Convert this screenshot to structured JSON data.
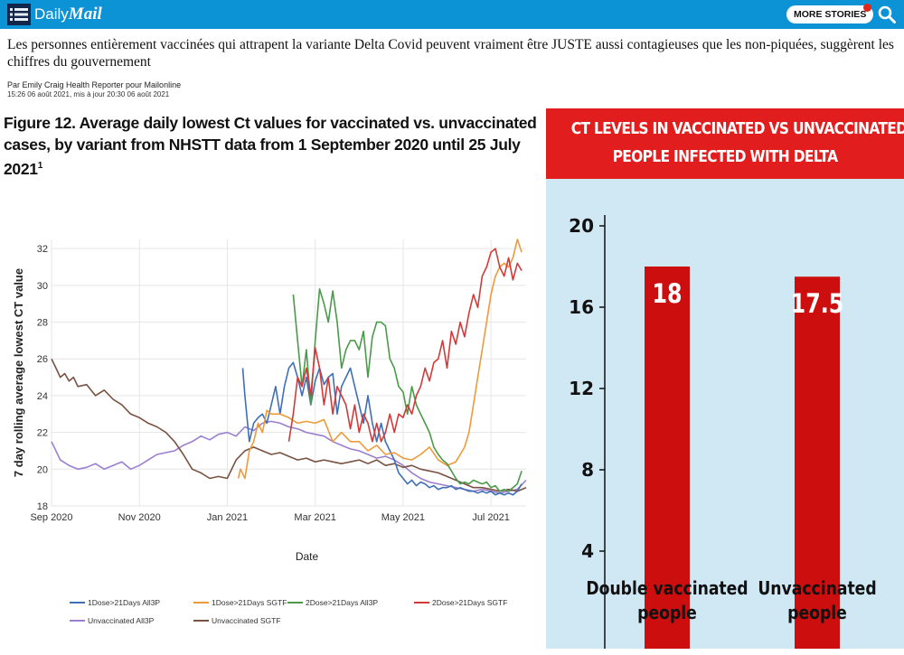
{
  "header": {
    "logo_part1": "Daily",
    "logo_part2": "Mail",
    "more_stories_label": "MORE STORIES",
    "menu_icon": "hamburger-menu-icon",
    "search_icon": "search-icon",
    "brand_color": "#0b93d6"
  },
  "article": {
    "headline": "Les personnes entièrement vaccinées qui attrapent la variante Delta Covid peuvent vraiment être JUSTE aussi contagieuses que les non-piquées, suggèrent les chiffres du gouvernement",
    "byline": "Par Emily Craig Health Reporter pour Mailonline",
    "dateline": "15:26 06 août 2021, mis à jour 20:30 06 août 2021"
  },
  "figure_left": {
    "title": "Figure 12. Average daily lowest Ct values for vaccinated vs. unvaccinated cases, by variant from NHSTT data from 1 September 2020 until 25 July 2021",
    "footnote_mark": "1"
  },
  "figure_right": {
    "banner_line1": "CT LEVELS IN VACCINATED VS UNVACCINATED",
    "banner_line2": "PEOPLE INFECTED WITH DELTA"
  },
  "chart_data": [
    {
      "type": "line",
      "title": "Figure 12. Average daily lowest Ct values for vaccinated vs. unvaccinated cases, by variant from NHSTT data from 1 September 2020 until 25 July 2021",
      "xlabel": "Date",
      "ylabel": "7 day rolling average lowest CT value",
      "x_ticks": [
        "Sep 2020",
        "Nov 2020",
        "Jan 2021",
        "Mar 2021",
        "May 2021",
        "Jul 2021"
      ],
      "y_ticks": [
        18,
        20,
        22,
        24,
        26,
        28,
        30,
        32
      ],
      "ylim": [
        18,
        32.5
      ],
      "x_range_months": [
        0,
        10.8
      ],
      "grid": true,
      "legend_position": "bottom",
      "series": [
        {
          "name": "1Dose>21Days All3P",
          "color": "#3f6fb5",
          "x": [
            4.35,
            4.4,
            4.5,
            4.6,
            4.7,
            4.8,
            4.9,
            5.0,
            5.1,
            5.2,
            5.3,
            5.4,
            5.5,
            5.6,
            5.7,
            5.8,
            5.9,
            6.0,
            6.1,
            6.2,
            6.3,
            6.4,
            6.5,
            6.6,
            6.7,
            6.8,
            6.9,
            7.0,
            7.1,
            7.2,
            7.3,
            7.4,
            7.5,
            7.6,
            7.7,
            7.8,
            7.9,
            8.0,
            8.1,
            8.2,
            8.3,
            8.4,
            8.5,
            8.6,
            8.7,
            8.8,
            8.9,
            9.0,
            9.1,
            9.2,
            9.3,
            9.4,
            9.5,
            9.6,
            9.7,
            9.8,
            9.9,
            10.0,
            10.1,
            10.2,
            10.3,
            10.4,
            10.5,
            10.6,
            10.7
          ],
          "y": [
            25.5,
            24.0,
            21.5,
            22.5,
            22.8,
            23.0,
            22.5,
            23.5,
            24.5,
            23.0,
            24.5,
            25.5,
            25.8,
            25.0,
            24.0,
            25.0,
            23.5,
            24.8,
            25.5,
            24.6,
            25.0,
            25.2,
            23.0,
            24.5,
            25.0,
            25.5,
            24.5,
            23.5,
            22.5,
            24.0,
            22.5,
            21.5,
            22.5,
            21.5,
            21.0,
            20.5,
            19.8,
            19.5,
            19.2,
            19.4,
            19.1,
            19.3,
            19.2,
            19.0,
            19.1,
            18.9,
            19.0,
            19.0,
            19.1,
            18.9,
            19.0,
            18.9,
            18.8,
            18.8,
            18.7,
            18.8,
            18.7,
            18.8,
            18.6,
            18.7,
            18.6,
            18.7,
            18.6,
            18.8,
            19.2
          ]
        },
        {
          "name": "1Dose>21Days SGTF",
          "color": "#ee9a3a",
          "x": [
            4.25,
            4.3,
            4.4,
            4.5,
            4.6,
            4.7,
            4.8,
            4.9,
            5.0,
            5.2,
            5.4,
            5.6,
            5.8,
            6.0,
            6.2,
            6.4,
            6.6,
            6.8,
            7.0,
            7.2,
            7.4,
            7.6,
            7.8,
            8.0,
            8.2,
            8.4,
            8.6,
            8.8,
            9.0,
            9.2,
            9.3,
            9.4,
            9.5,
            9.6,
            9.7,
            9.8,
            9.9,
            10.0,
            10.1,
            10.2,
            10.3,
            10.4,
            10.5,
            10.6,
            10.7
          ],
          "y": [
            19.5,
            20.0,
            19.5,
            21.0,
            21.5,
            22.5,
            22.0,
            23.2,
            23.0,
            23.0,
            22.8,
            22.5,
            22.6,
            22.5,
            22.7,
            21.5,
            22.0,
            21.5,
            21.5,
            21.0,
            21.3,
            20.8,
            20.9,
            20.6,
            20.5,
            20.8,
            21.2,
            20.5,
            20.2,
            20.4,
            20.8,
            21.2,
            22.0,
            23.5,
            25.0,
            26.5,
            28.0,
            29.5,
            30.5,
            31.0,
            31.2,
            31.0,
            31.5,
            32.5,
            31.8
          ]
        },
        {
          "name": "2Dose>21Days All3P",
          "color": "#4a9a4a",
          "x": [
            5.5,
            5.6,
            5.7,
            5.8,
            5.9,
            6.0,
            6.1,
            6.2,
            6.3,
            6.4,
            6.5,
            6.6,
            6.7,
            6.8,
            6.9,
            7.0,
            7.1,
            7.2,
            7.3,
            7.4,
            7.5,
            7.6,
            7.7,
            7.8,
            7.9,
            8.0,
            8.1,
            8.2,
            8.3,
            8.4,
            8.5,
            8.6,
            8.7,
            8.8,
            8.9,
            9.0,
            9.1,
            9.2,
            9.3,
            9.4,
            9.5,
            9.6,
            9.7,
            9.8,
            9.9,
            10.0,
            10.1,
            10.2,
            10.3,
            10.4,
            10.5,
            10.6,
            10.7
          ],
          "y": [
            29.5,
            27.0,
            24.5,
            26.5,
            23.5,
            27.0,
            29.8,
            29.0,
            28.0,
            29.7,
            28.0,
            25.5,
            26.5,
            27.0,
            27.0,
            26.5,
            27.5,
            25.0,
            27.2,
            28.0,
            28.0,
            27.8,
            26.0,
            25.5,
            24.5,
            24.2,
            23.0,
            24.5,
            23.5,
            23.0,
            22.5,
            22.0,
            21.2,
            20.8,
            20.5,
            20.3,
            19.9,
            19.5,
            19.2,
            19.3,
            19.2,
            19.4,
            19.3,
            19.2,
            19.3,
            19.0,
            19.1,
            18.8,
            18.9,
            18.8,
            19.0,
            19.2,
            19.9
          ]
        },
        {
          "name": "2Dose>21Days SGTF",
          "color": "#d23a3a",
          "x": [
            5.4,
            5.5,
            5.6,
            5.7,
            5.8,
            5.9,
            6.0,
            6.1,
            6.2,
            6.3,
            6.4,
            6.5,
            6.6,
            6.7,
            6.8,
            6.9,
            7.0,
            7.1,
            7.2,
            7.3,
            7.4,
            7.5,
            7.6,
            7.7,
            7.8,
            7.9,
            8.0,
            8.1,
            8.2,
            8.3,
            8.4,
            8.5,
            8.6,
            8.7,
            8.8,
            8.9,
            9.0,
            9.1,
            9.2,
            9.3,
            9.4,
            9.5,
            9.6,
            9.7,
            9.8,
            9.9,
            10.0,
            10.1,
            10.2,
            10.3,
            10.4,
            10.5,
            10.6,
            10.7
          ],
          "y": [
            21.5,
            23.0,
            25.0,
            24.5,
            25.5,
            24.0,
            26.6,
            25.5,
            23.5,
            25.0,
            23.0,
            24.5,
            24.0,
            23.5,
            22.2,
            23.5,
            22.0,
            23.0,
            22.5,
            21.5,
            22.5,
            21.5,
            22.0,
            23.0,
            22.0,
            23.0,
            22.8,
            23.5,
            23.0,
            24.0,
            24.5,
            25.5,
            24.8,
            25.8,
            26.0,
            27.0,
            25.5,
            27.5,
            26.8,
            28.0,
            27.2,
            28.5,
            29.5,
            28.8,
            30.5,
            31.0,
            31.8,
            32.0,
            31.0,
            30.5,
            31.5,
            30.3,
            31.2,
            30.8
          ]
        },
        {
          "name": "Unvaccinated All3P",
          "color": "#9a7fd0",
          "x": [
            0.0,
            0.2,
            0.4,
            0.6,
            0.8,
            1.0,
            1.2,
            1.4,
            1.6,
            1.8,
            2.0,
            2.2,
            2.4,
            2.6,
            2.8,
            3.0,
            3.2,
            3.4,
            3.6,
            3.8,
            4.0,
            4.2,
            4.4,
            4.6,
            4.8,
            5.0,
            5.2,
            5.4,
            5.6,
            5.8,
            6.0,
            6.2,
            6.4,
            6.6,
            6.8,
            7.0,
            7.2,
            7.4,
            7.6,
            7.8,
            8.0,
            8.2,
            8.4,
            8.6,
            8.8,
            9.0,
            9.2,
            9.4,
            9.6,
            9.8,
            10.0,
            10.2,
            10.4,
            10.6,
            10.8
          ],
          "y": [
            21.5,
            20.5,
            20.2,
            20.0,
            20.1,
            20.3,
            20.0,
            20.2,
            20.4,
            20.0,
            20.2,
            20.5,
            20.8,
            20.9,
            21.0,
            21.3,
            21.5,
            21.8,
            21.6,
            21.9,
            22.0,
            21.8,
            22.3,
            22.1,
            22.5,
            22.6,
            22.5,
            22.3,
            22.2,
            22.0,
            21.9,
            21.8,
            21.5,
            21.3,
            21.1,
            21.0,
            20.8,
            20.6,
            20.7,
            20.5,
            20.2,
            19.8,
            19.5,
            19.3,
            19.2,
            19.1,
            19.0,
            18.9,
            18.8,
            18.9,
            18.8,
            18.7,
            18.8,
            18.9,
            19.4
          ]
        },
        {
          "name": "Unvaccinated SGTF",
          "color": "#7a5242",
          "x": [
            0.0,
            0.1,
            0.2,
            0.3,
            0.4,
            0.5,
            0.6,
            0.8,
            1.0,
            1.2,
            1.4,
            1.6,
            1.8,
            2.0,
            2.2,
            2.4,
            2.6,
            2.8,
            3.0,
            3.2,
            3.4,
            3.6,
            3.8,
            4.0,
            4.2,
            4.4,
            4.6,
            4.8,
            5.0,
            5.2,
            5.4,
            5.6,
            5.8,
            6.0,
            6.2,
            6.4,
            6.6,
            6.8,
            7.0,
            7.2,
            7.4,
            7.6,
            7.8,
            8.0,
            8.2,
            8.4,
            8.6,
            8.8,
            9.0,
            9.2,
            9.4,
            9.6,
            9.8,
            10.0,
            10.2,
            10.4,
            10.6,
            10.8
          ],
          "y": [
            26.0,
            25.5,
            25.0,
            25.2,
            24.8,
            25.0,
            24.5,
            24.6,
            24.0,
            24.3,
            23.8,
            23.5,
            23.0,
            22.8,
            22.5,
            22.3,
            22.0,
            21.5,
            20.8,
            20.0,
            19.8,
            19.5,
            19.6,
            19.5,
            20.5,
            21.0,
            21.2,
            21.0,
            20.8,
            20.9,
            20.7,
            20.5,
            20.6,
            20.4,
            20.5,
            20.4,
            20.3,
            20.4,
            20.5,
            20.3,
            20.5,
            20.2,
            20.3,
            20.1,
            20.2,
            20.0,
            19.9,
            19.8,
            19.6,
            19.4,
            19.2,
            19.0,
            19.0,
            18.9,
            18.8,
            18.9,
            18.8,
            19.0
          ]
        }
      ]
    },
    {
      "type": "bar",
      "title": "CT LEVELS IN VACCINATED VS UNVACCINATED PEOPLE INFECTED WITH DELTA",
      "categories": [
        "Double vaccinated people",
        "Unvaccinated people"
      ],
      "category_lines": [
        [
          "Double vaccinated",
          "people"
        ],
        [
          "Unvaccinated",
          "people"
        ]
      ],
      "values": [
        18,
        17.5
      ],
      "value_labels": [
        "18",
        "17.5"
      ],
      "y_ticks": [
        4,
        8,
        12,
        16,
        20
      ],
      "ylim": [
        0,
        20
      ],
      "bar_color": "#cc0e0e",
      "grid": false
    }
  ]
}
